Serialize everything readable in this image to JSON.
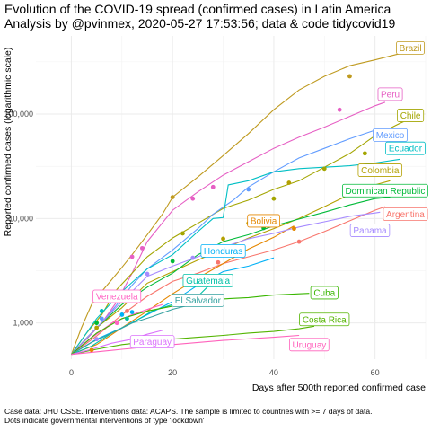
{
  "chart_data": {
    "type": "line",
    "title_lines": [
      "Evolution of the COVID-19 spread (confirmed cases) in Latin America",
      "Analysis by @pvinmex, 2020-05-27 17:53:56; data & code tidycovid19"
    ],
    "xlabel": "Days after 500th reported confirmed case",
    "ylabel": "Reported confirmed cases (logarithmic scale)",
    "y_scale": "log",
    "xlim": [
      -7,
      70
    ],
    "ylim": [
      450,
      560000
    ],
    "x_ticks": [
      0,
      20,
      40,
      60
    ],
    "y_ticks": [
      1000,
      10000,
      100000
    ],
    "y_tick_labels": [
      "1,000",
      "10,000",
      "100,000"
    ],
    "grid": true,
    "legend": "none",
    "caption_lines": [
      "Case data: JHU CSSE. Interventions data: ACAPS. The sample is limited to countries with >= 7 days of data.",
      "Dots indicate governmental interventions of type 'lockdown'"
    ],
    "series": [
      {
        "name": "Brazil",
        "color": "#BF9A1F",
        "label_at": [
          67,
          430000
        ],
        "points": [
          [
            0,
            500
          ],
          [
            2,
            900
          ],
          [
            4,
            1500
          ],
          [
            6,
            2000
          ],
          [
            8,
            2600
          ],
          [
            10,
            3400
          ],
          [
            12,
            4500
          ],
          [
            15,
            7000
          ],
          [
            18,
            11000
          ],
          [
            20,
            16000
          ],
          [
            25,
            25000
          ],
          [
            30,
            40000
          ],
          [
            35,
            65000
          ],
          [
            40,
            110000
          ],
          [
            45,
            170000
          ],
          [
            50,
            230000
          ],
          [
            55,
            290000
          ],
          [
            60,
            330000
          ],
          [
            65,
            380000
          ],
          [
            68,
            400000
          ]
        ],
        "dots": [
          [
            20,
            16000
          ],
          [
            55,
            230000
          ]
        ]
      },
      {
        "name": "Peru",
        "color": "#E65FC4",
        "label_at": [
          63,
          155000
        ],
        "points": [
          [
            0,
            500
          ],
          [
            3,
            700
          ],
          [
            6,
            1000
          ],
          [
            9,
            1600
          ],
          [
            12,
            3000
          ],
          [
            15,
            6000
          ],
          [
            20,
            12000
          ],
          [
            25,
            18000
          ],
          [
            30,
            26000
          ],
          [
            35,
            35000
          ],
          [
            40,
            47000
          ],
          [
            45,
            60000
          ],
          [
            50,
            75000
          ],
          [
            55,
            95000
          ],
          [
            60,
            120000
          ],
          [
            62,
            130000
          ]
        ],
        "dots": [
          [
            12,
            4300
          ],
          [
            14,
            5200
          ],
          [
            24,
            15500
          ],
          [
            28,
            20000
          ],
          [
            53,
            110000
          ]
        ]
      },
      {
        "name": "Chile",
        "color": "#A3A500",
        "label_at": [
          67,
          97000
        ],
        "points": [
          [
            0,
            500
          ],
          [
            3,
            800
          ],
          [
            6,
            1200
          ],
          [
            9,
            2100
          ],
          [
            12,
            3000
          ],
          [
            15,
            4300
          ],
          [
            20,
            6500
          ],
          [
            25,
            9000
          ],
          [
            30,
            12500
          ],
          [
            35,
            15000
          ],
          [
            40,
            19000
          ],
          [
            45,
            23000
          ],
          [
            50,
            31000
          ],
          [
            55,
            42000
          ],
          [
            60,
            62000
          ],
          [
            65,
            82000
          ],
          [
            67,
            90000
          ]
        ],
        "dots": [
          [
            22,
            7200
          ],
          [
            40,
            15500
          ],
          [
            50,
            30000
          ],
          [
            58,
            42000
          ]
        ]
      },
      {
        "name": "Mexico",
        "color": "#619CFF",
        "label_at": [
          63,
          63000
        ],
        "points": [
          [
            0,
            500
          ],
          [
            3,
            720
          ],
          [
            6,
            1000
          ],
          [
            9,
            1500
          ],
          [
            12,
            2300
          ],
          [
            15,
            3300
          ],
          [
            20,
            5000
          ],
          [
            25,
            8000
          ],
          [
            28,
            11000
          ],
          [
            32,
            15000
          ],
          [
            35,
            20000
          ],
          [
            40,
            28000
          ],
          [
            45,
            38000
          ],
          [
            50,
            47000
          ],
          [
            55,
            58000
          ],
          [
            60,
            70000
          ],
          [
            62,
            72000
          ]
        ],
        "dots": [
          [
            6,
            1100
          ],
          [
            35,
            19000
          ]
        ]
      },
      {
        "name": "Ecuador",
        "color": "#00BFC4",
        "label_at": [
          66,
          47000
        ],
        "points": [
          [
            0,
            500
          ],
          [
            5,
            1100
          ],
          [
            10,
            2000
          ],
          [
            15,
            3300
          ],
          [
            20,
            4500
          ],
          [
            25,
            7500
          ],
          [
            28,
            10000
          ],
          [
            29,
            10100
          ],
          [
            30,
            10200
          ],
          [
            31,
            21000
          ],
          [
            35,
            23000
          ],
          [
            40,
            28000
          ],
          [
            45,
            30000
          ],
          [
            50,
            31000
          ],
          [
            55,
            32000
          ],
          [
            60,
            34000
          ],
          [
            65,
            37000
          ]
        ],
        "dots": [
          [
            6,
            1300
          ]
        ]
      },
      {
        "name": "Colombia",
        "color": "#B3A000",
        "label_at": [
          61,
          29000
        ],
        "points": [
          [
            0,
            500
          ],
          [
            5,
            900
          ],
          [
            10,
            1400
          ],
          [
            15,
            2400
          ],
          [
            20,
            3100
          ],
          [
            25,
            4000
          ],
          [
            30,
            5100
          ],
          [
            35,
            6500
          ],
          [
            40,
            8000
          ],
          [
            45,
            10000
          ],
          [
            50,
            13000
          ],
          [
            55,
            17000
          ],
          [
            60,
            21000
          ],
          [
            63,
            23000
          ]
        ],
        "dots": [
          [
            5,
            900
          ],
          [
            30,
            6400
          ],
          [
            35,
            9000
          ],
          [
            43,
            22000
          ]
        ]
      },
      {
        "name": "Dominican Republic",
        "color": "#00BA38",
        "label_at": [
          62,
          18500
        ],
        "points": [
          [
            0,
            500
          ],
          [
            5,
            900
          ],
          [
            10,
            1500
          ],
          [
            15,
            2200
          ],
          [
            20,
            3000
          ],
          [
            25,
            4500
          ],
          [
            30,
            6000
          ],
          [
            35,
            7000
          ],
          [
            40,
            8500
          ],
          [
            45,
            9900
          ],
          [
            50,
            11500
          ],
          [
            55,
            13500
          ],
          [
            60,
            15500
          ],
          [
            63,
            16000
          ]
        ],
        "dots": [
          [
            5,
            1000
          ],
          [
            20,
            3900
          ],
          [
            38,
            8100
          ]
        ]
      },
      {
        "name": "Argentina",
        "color": "#F8766D",
        "label_at": [
          66,
          11000
        ],
        "points": [
          [
            0,
            500
          ],
          [
            5,
            750
          ],
          [
            10,
            1200
          ],
          [
            15,
            1800
          ],
          [
            20,
            2500
          ],
          [
            25,
            3000
          ],
          [
            30,
            3700
          ],
          [
            35,
            4300
          ],
          [
            40,
            5000
          ],
          [
            45,
            6000
          ],
          [
            50,
            7500
          ],
          [
            55,
            9500
          ],
          [
            60,
            12000
          ],
          [
            62,
            13000
          ]
        ],
        "dots": [
          [
            11,
            1300
          ],
          [
            29,
            3800
          ],
          [
            45,
            6000
          ]
        ]
      },
      {
        "name": "Bolivia",
        "color": "#E58700",
        "label_at": [
          38,
          9500
        ],
        "points": [
          [
            0,
            500
          ],
          [
            5,
            620
          ],
          [
            10,
            900
          ],
          [
            15,
            1300
          ],
          [
            20,
            1900
          ],
          [
            25,
            2700
          ],
          [
            30,
            3700
          ],
          [
            35,
            5100
          ],
          [
            40,
            6600
          ],
          [
            44,
            8500
          ]
        ],
        "dots": [
          [
            4,
            550
          ],
          [
            44,
            8000
          ]
        ]
      },
      {
        "name": "Panama",
        "color": "#A58AFF",
        "label_at": [
          59,
          7700
        ],
        "points": [
          [
            0,
            500
          ],
          [
            5,
            900
          ],
          [
            10,
            1600
          ],
          [
            15,
            2800
          ],
          [
            20,
            3500
          ],
          [
            25,
            4300
          ],
          [
            30,
            5300
          ],
          [
            35,
            6400
          ],
          [
            40,
            7200
          ],
          [
            45,
            8300
          ],
          [
            50,
            9300
          ],
          [
            55,
            10500
          ],
          [
            60,
            11300
          ],
          [
            61,
            11500
          ]
        ],
        "dots": [
          [
            5,
            700
          ],
          [
            15,
            2950
          ],
          [
            24,
            4200
          ],
          [
            28,
            4700
          ]
        ]
      },
      {
        "name": "Honduras",
        "color": "#00B0F6",
        "label_at": [
          30,
          4900
        ],
        "points": [
          [
            0,
            500
          ],
          [
            5,
            700
          ],
          [
            10,
            900
          ],
          [
            15,
            1200
          ],
          [
            20,
            1600
          ],
          [
            25,
            2300
          ],
          [
            30,
            3100
          ],
          [
            35,
            3500
          ],
          [
            40,
            4200
          ]
        ],
        "dots": [
          [
            10,
            1200
          ],
          [
            12,
            1270
          ]
        ]
      },
      {
        "name": "Guatemala",
        "color": "#00C1A7",
        "label_at": [
          27,
          2550
        ],
        "points": [
          [
            0,
            500
          ],
          [
            4,
            600
          ],
          [
            8,
            800
          ],
          [
            12,
            1000
          ],
          [
            16,
            1300
          ],
          [
            20,
            1500
          ],
          [
            25,
            1800
          ],
          [
            28,
            2500
          ],
          [
            30,
            2700
          ]
        ],
        "dots": [
          [
            11,
            1100
          ]
        ]
      },
      {
        "name": "Venezuela",
        "color": "#FF61C3",
        "label_at": [
          9,
          1800
        ],
        "points": [
          [
            0,
            500
          ],
          [
            4,
            720
          ],
          [
            8,
            1000
          ],
          [
            12,
            1200
          ],
          [
            16,
            1400
          ],
          [
            18,
            1500
          ]
        ],
        "dots": [
          [
            9,
            1000
          ]
        ]
      },
      {
        "name": "El Salvador",
        "color": "#35A2A0",
        "label_at": [
          25,
          1650
        ],
        "points": [
          [
            0,
            500
          ],
          [
            4,
            650
          ],
          [
            8,
            800
          ],
          [
            12,
            1000
          ],
          [
            16,
            1150
          ],
          [
            20,
            1350
          ],
          [
            25,
            1550
          ],
          [
            28,
            1650
          ]
        ],
        "dots": []
      },
      {
        "name": "Cuba",
        "color": "#39B600",
        "label_at": [
          50,
          1950
        ],
        "points": [
          [
            0,
            500
          ],
          [
            5,
            800
          ],
          [
            10,
            1100
          ],
          [
            15,
            1300
          ],
          [
            20,
            1450
          ],
          [
            25,
            1600
          ],
          [
            30,
            1700
          ],
          [
            35,
            1750
          ],
          [
            40,
            1850
          ],
          [
            45,
            1900
          ],
          [
            47,
            1920
          ]
        ],
        "dots": []
      },
      {
        "name": "Costa Rica",
        "color": "#53B400",
        "label_at": [
          50,
          1080
        ],
        "points": [
          [
            0,
            500
          ],
          [
            5,
            560
          ],
          [
            10,
            620
          ],
          [
            15,
            660
          ],
          [
            20,
            700
          ],
          [
            25,
            730
          ],
          [
            30,
            760
          ],
          [
            35,
            800
          ],
          [
            40,
            830
          ],
          [
            45,
            880
          ],
          [
            48,
            930
          ]
        ],
        "dots": []
      },
      {
        "name": "Paraguay",
        "color": "#DB72FB",
        "label_at": [
          16,
          660
        ],
        "points": [
          [
            0,
            500
          ],
          [
            4,
            560
          ],
          [
            8,
            640
          ],
          [
            12,
            700
          ],
          [
            15,
            780
          ],
          [
            18,
            850
          ]
        ],
        "dots": []
      },
      {
        "name": "Uruguay",
        "color": "#FF62BC",
        "label_at": [
          47,
          620
        ],
        "points": [
          [
            0,
            500
          ],
          [
            10,
            560
          ],
          [
            20,
            620
          ],
          [
            30,
            680
          ],
          [
            40,
            730
          ],
          [
            45,
            760
          ]
        ],
        "dots": []
      }
    ]
  }
}
